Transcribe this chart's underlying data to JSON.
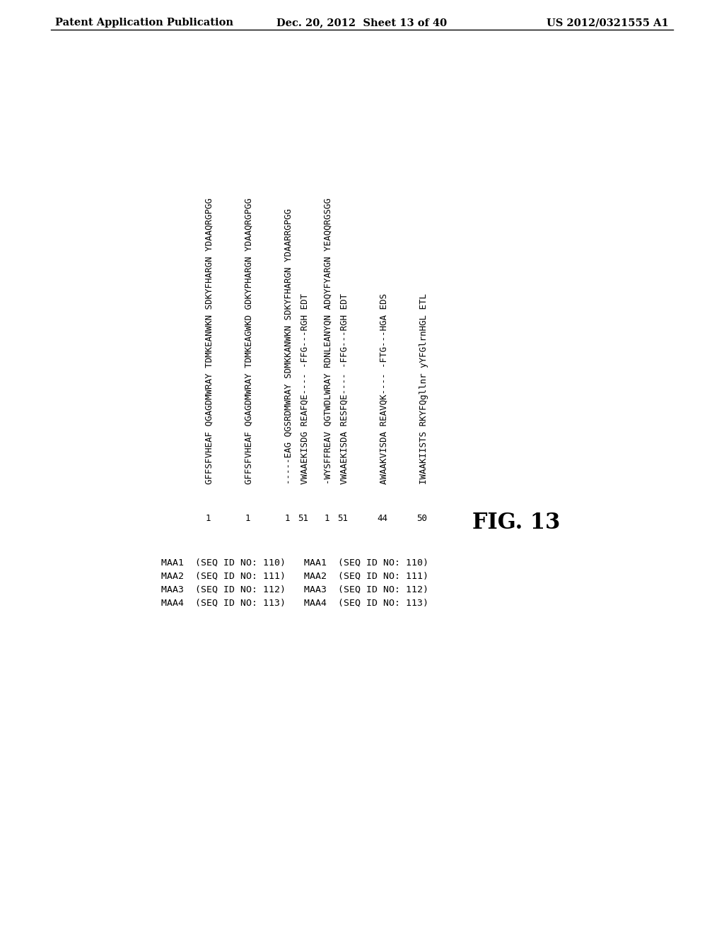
{
  "header_left": "Patent Application Publication",
  "header_center": "Dec. 20, 2012  Sheet 13 of 40",
  "header_right": "US 2012/0321555 A1",
  "figure_label": "FIG. 13",
  "background_color": "#ffffff",
  "text_color": "#000000",
  "top_seq_lines": [
    "GFFSFVHEAF QGAGDMWRAY TDMKEANWKN SDKYFHARGN YDAAQRGPGG",
    "GFFSFVHEAF QGAGDMWRAY TDMKEAGWKD GDKYPHARGN YDAAQRGPGG",
    "-----EAG QGSRDMWRAY SDMKKANWKN SDKYFHARGN YDAARRGPGG",
    "-WYSFFREAV QGTWDLWRAY RDNLEANYQN ADQYFYARGN YEAQQRGSGG"
  ],
  "top_seq_numbers": [
    "1",
    "1",
    "1",
    "1"
  ],
  "bottom_seq_lines": [
    "VWAAEKISDG REAFQE---- -FFG---RGH EDT",
    "VWAAEKISDA RESFQE---- -FFG---RGH EDT",
    "AWAAKVISDA REAVQK---- -FTG---HGA EDS",
    "IWAAKIISTS RKYFQgllnr yYFGlrnHGL ETL"
  ],
  "bottom_seq_numbers": [
    "51",
    "51",
    "44",
    "50"
  ],
  "seq_table1": [
    "MAA1  (SEQ ID NO: 110)",
    "MAA2  (SEQ ID NO: 111)",
    "MAA3  (SEQ ID NO: 112)",
    "MAA4  (SEQ ID NO: 113)"
  ],
  "seq_table2": [
    "MAA1  (SEQ ID NO: 110)",
    "MAA2  (SEQ ID NO: 111)",
    "MAA3  (SEQ ID NO: 112)",
    "MAA4  (SEQ ID NO: 113)"
  ],
  "mono_fontsize": 9.0,
  "header_fontsize": 10.5,
  "fig_label_fontsize": 22,
  "seq_table_fontsize": 9.5
}
